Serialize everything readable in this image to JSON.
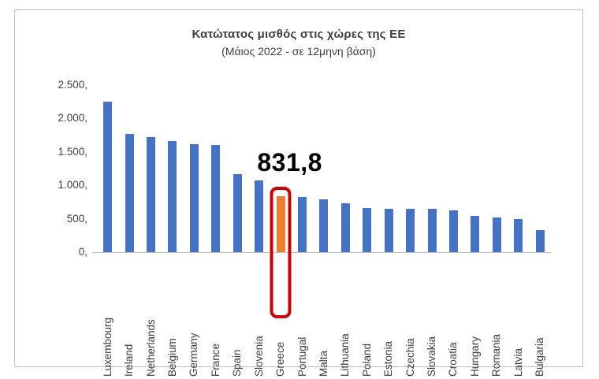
{
  "chart_data": {
    "type": "bar",
    "title": "Κατώτατος μισθός στις χώρες της ΕΕ",
    "subtitle": "(Μάιος 2022 - σε 12μηνη βάση)",
    "categories": [
      "Luxembourg",
      "Ireland",
      "Netherlands",
      "Belgium",
      "Germany",
      "France",
      "Spain",
      "Slovenia",
      "Greece",
      "Portugal",
      "Malta",
      "Lithuania",
      "Poland",
      "Estonia",
      "Czechia",
      "Slovakia",
      "Croatia",
      "Hungary",
      "Romania",
      "Latvia",
      "Bulgaria"
    ],
    "values": [
      2257,
      1774.5,
      1725,
      1658.2,
      1621,
      1603.1,
      1166.7,
      1074.4,
      831.8,
      822.5,
      792.3,
      730,
      655,
      654,
      651.7,
      646,
      624,
      541.7,
      515.2,
      500,
      332.3
    ],
    "xlabel": "",
    "ylabel": "",
    "ylim": [
      0,
      2500
    ],
    "grid": false,
    "legend": "none",
    "yticks": {
      "values": [
        0,
        500,
        1000,
        1500,
        2000,
        2500
      ],
      "labels": [
        "0,",
        "500,",
        "1.000,",
        "1.500,",
        "2.000,",
        "2.500,"
      ]
    },
    "bar_color": "#4472C4",
    "highlight": {
      "category": "Greece",
      "annotation": "831,8",
      "bar_color": "#ED7D31",
      "box_color": "#CC0000"
    }
  }
}
